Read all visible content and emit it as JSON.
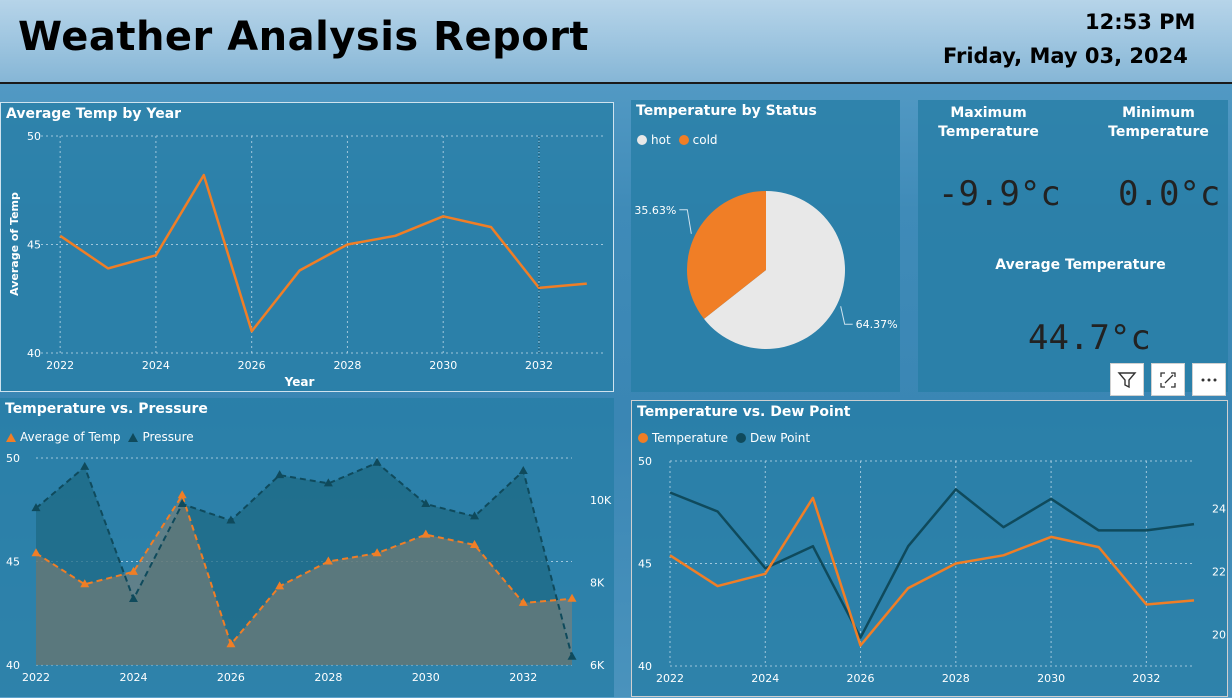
{
  "header": {
    "title": "Weather Analysis Report",
    "time": "12:53 PM",
    "date": "Friday, May 03, 2024"
  },
  "colors": {
    "orange": "#f07e26",
    "dark": "#0f4a5c",
    "light": "#e8e8e8",
    "grid": "#9fc6dc"
  },
  "panels": {
    "avg_temp": {
      "title": "Average Temp by Year"
    },
    "status": {
      "title": "Temperature by Status",
      "legend": [
        "hot",
        "cold"
      ]
    },
    "pressure": {
      "title": "Temperature vs. Pressure",
      "legend": [
        "Average of Temp",
        "Pressure"
      ]
    },
    "dew": {
      "title": "Temperature vs. Dew Point",
      "legend": [
        "Temperature",
        "Dew Point"
      ]
    }
  },
  "kpi": {
    "max_label": "Maximum Temperature",
    "min_label": "Minimum Temperature",
    "max_value": "-9.9°c",
    "min_value": "0.0°c",
    "avg_label": "Average Temperature",
    "avg_value": "44.7°c"
  },
  "visual_buttons": [
    "filter-icon",
    "focus-mode-icon",
    "more-options-icon"
  ],
  "chart_data": [
    {
      "type": "line",
      "title": "Average Temp by Year",
      "xlabel": "Year",
      "ylabel": "Average of Temp",
      "x": [
        2022,
        2023,
        2024,
        2025,
        2026,
        2027,
        2028,
        2029,
        2030,
        2031,
        2032,
        2033
      ],
      "series": [
        {
          "name": "Average of Temp",
          "values": [
            45.4,
            43.9,
            44.5,
            48.2,
            41.0,
            43.8,
            45.0,
            45.4,
            46.3,
            45.8,
            43.0,
            43.2
          ]
        }
      ],
      "ylim": [
        40,
        50
      ],
      "yticks": [
        40,
        45,
        50
      ],
      "xticks": [
        2022,
        2024,
        2026,
        2028,
        2030,
        2032
      ],
      "grid": true
    },
    {
      "type": "pie",
      "title": "Temperature by Status",
      "slices": [
        {
          "name": "hot",
          "value": 64.37,
          "label": "64.37%"
        },
        {
          "name": "cold",
          "value": 35.63,
          "label": "35.63%"
        }
      ],
      "legend": "top-left"
    },
    {
      "type": "area",
      "title": "Temperature vs. Pressure",
      "x": [
        2022,
        2023,
        2024,
        2025,
        2026,
        2027,
        2028,
        2029,
        2030,
        2031,
        2032,
        2033
      ],
      "series": [
        {
          "name": "Average of Temp",
          "axis": "left",
          "values": [
            45.4,
            43.9,
            44.5,
            48.2,
            41.0,
            43.8,
            45.0,
            45.4,
            46.3,
            45.8,
            43.0,
            43.2
          ]
        },
        {
          "name": "Pressure",
          "axis": "right",
          "values": [
            9800,
            10800,
            7600,
            9900,
            9500,
            10600,
            10400,
            10900,
            9900,
            9600,
            10700,
            6200
          ]
        }
      ],
      "ylim": [
        40,
        50
      ],
      "yticks": [
        40,
        45,
        50
      ],
      "y2lim": [
        6000,
        11500
      ],
      "y2ticks": [
        "6K",
        "8K",
        "10K"
      ],
      "y2tickvalues": [
        6000,
        8000,
        10000
      ],
      "xticks": [
        2022,
        2024,
        2026,
        2028,
        2030,
        2032
      ],
      "legend": "top-left"
    },
    {
      "type": "line",
      "title": "Temperature vs. Dew Point",
      "x": [
        2022,
        2023,
        2024,
        2025,
        2026,
        2027,
        2028,
        2029,
        2030,
        2031,
        2032,
        2033
      ],
      "series": [
        {
          "name": "Temperature",
          "axis": "left",
          "values": [
            45.4,
            43.9,
            44.5,
            48.2,
            41.0,
            43.8,
            45.0,
            45.4,
            46.3,
            45.8,
            43.0,
            43.2
          ]
        },
        {
          "name": "Dew Point",
          "axis": "right",
          "values": [
            24.5,
            23.9,
            22.1,
            22.8,
            19.9,
            22.8,
            24.6,
            23.4,
            24.3,
            23.3,
            23.3,
            23.5
          ]
        }
      ],
      "ylim": [
        40,
        50
      ],
      "yticks": [
        40,
        45,
        50
      ],
      "y2lim": [
        19,
        25.5
      ],
      "y2ticks": [
        20,
        22,
        24
      ],
      "xticks": [
        2022,
        2024,
        2026,
        2028,
        2030,
        2032
      ],
      "legend": "top-left"
    }
  ]
}
